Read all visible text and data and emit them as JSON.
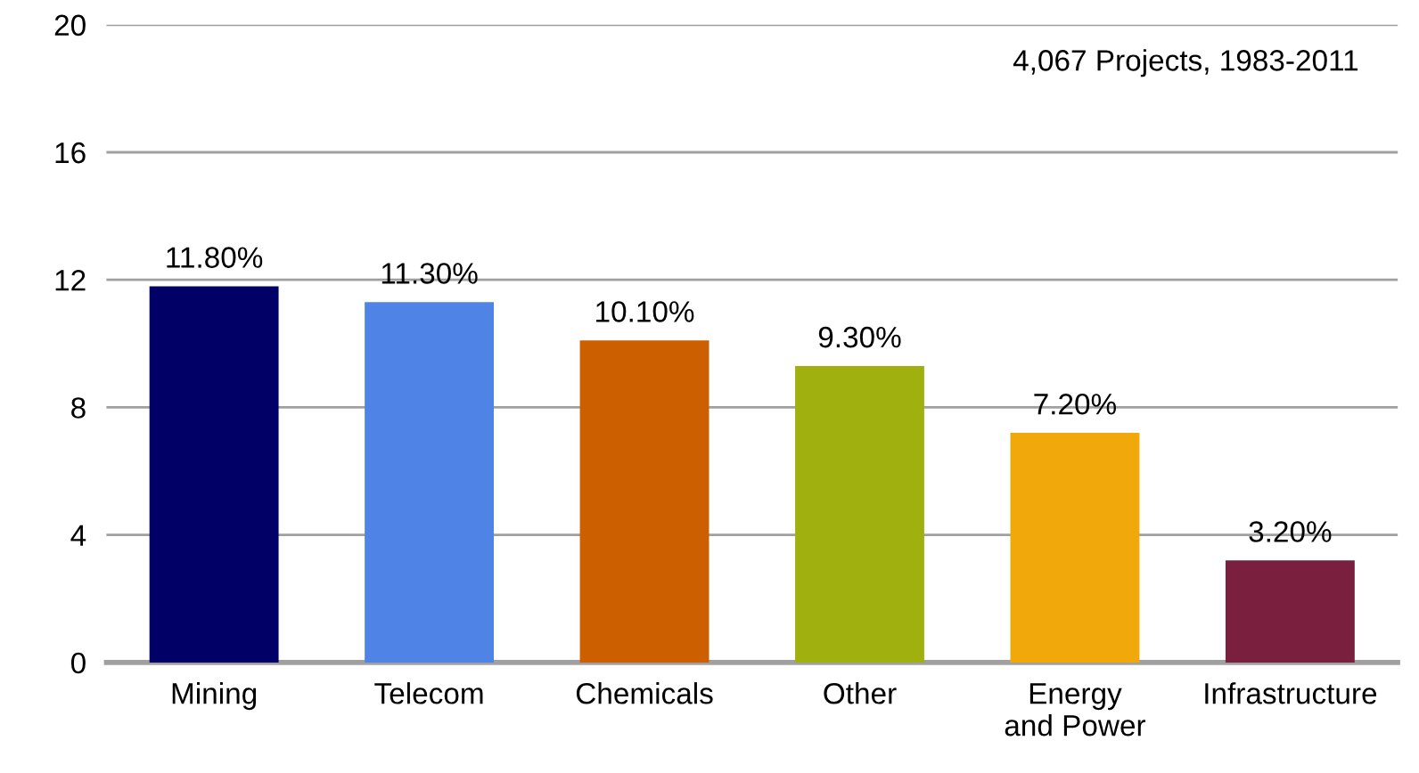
{
  "chart_data": {
    "type": "bar",
    "categories": [
      "Mining",
      "Telecom",
      "Chemicals",
      "Other",
      "Energy\nand Power",
      "Infrastructure"
    ],
    "values": [
      11.8,
      11.3,
      10.1,
      9.3,
      7.2,
      3.2
    ],
    "colors": [
      "#000066",
      "#5083e6",
      "#cc6000",
      "#9fb00f",
      "#f0a80a",
      "#7b1f3f"
    ],
    "value_labels": [
      "11.80%",
      "11.30%",
      "10.10%",
      "9.30%",
      "7.20%",
      "3.20%"
    ],
    "annotations": [
      "4,067 Projects, 1983-2011"
    ],
    "ylim": [
      0,
      20
    ],
    "yticks": [
      0,
      4,
      8,
      12,
      16,
      20
    ],
    "grid": "y",
    "legend": false
  }
}
